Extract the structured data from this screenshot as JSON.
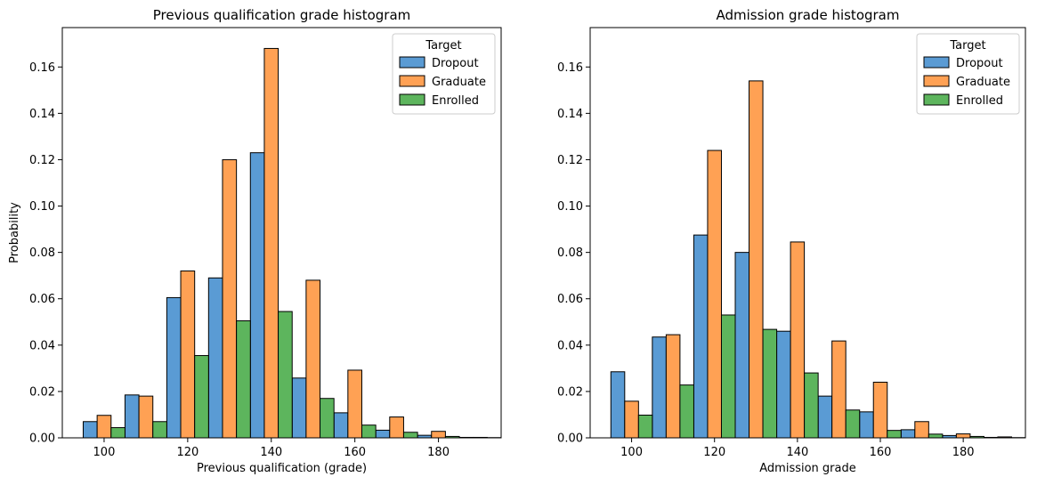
{
  "chart_data": [
    {
      "type": "bar",
      "title": "Previous qualification grade histogram",
      "xlabel": "Previous qualification (grade)",
      "ylabel": "Probability",
      "xlim": [
        90,
        195
      ],
      "ylim": [
        0,
        0.177
      ],
      "xticks": [
        100,
        120,
        140,
        160,
        180
      ],
      "yticks": [
        0.0,
        0.02,
        0.04,
        0.06,
        0.08,
        0.1,
        0.12,
        0.14,
        0.16
      ],
      "grid": false,
      "legend": {
        "title": "Target",
        "placement": "top-right"
      },
      "bin_start": 95,
      "bin_width": 10,
      "series": [
        {
          "name": "Dropout",
          "color": "#5a9bd4",
          "values": [
            0.007,
            0.0185,
            0.0605,
            0.069,
            0.123,
            0.0258,
            0.0108,
            0.0033,
            0.0011,
            0.0002
          ]
        },
        {
          "name": "Graduate",
          "color": "#ffa154",
          "values": [
            0.0097,
            0.018,
            0.072,
            0.12,
            0.168,
            0.068,
            0.0292,
            0.009,
            0.0028,
            0.0002
          ]
        },
        {
          "name": "Enrolled",
          "color": "#5db55d",
          "values": [
            0.0044,
            0.007,
            0.0355,
            0.0505,
            0.0545,
            0.017,
            0.0055,
            0.0024,
            0.0006,
            0.0001
          ]
        }
      ]
    },
    {
      "type": "bar",
      "title": "Admission grade histogram",
      "xlabel": "Admission grade",
      "ylabel": "",
      "xlim": [
        90,
        195
      ],
      "ylim": [
        0,
        0.177
      ],
      "xticks": [
        100,
        120,
        140,
        160,
        180
      ],
      "yticks": [
        0.0,
        0.02,
        0.04,
        0.06,
        0.08,
        0.1,
        0.12,
        0.14,
        0.16
      ],
      "grid": false,
      "legend": {
        "title": "Target",
        "placement": "top-right"
      },
      "bin_start": 95,
      "bin_width": 10,
      "series": [
        {
          "name": "Dropout",
          "color": "#5a9bd4",
          "values": [
            0.0285,
            0.0435,
            0.0875,
            0.08,
            0.046,
            0.018,
            0.0112,
            0.0035,
            0.001,
            0.0002
          ]
        },
        {
          "name": "Graduate",
          "color": "#ffa154",
          "values": [
            0.0158,
            0.0445,
            0.124,
            0.154,
            0.0845,
            0.0418,
            0.024,
            0.007,
            0.0017,
            0.0004
          ]
        },
        {
          "name": "Enrolled",
          "color": "#5db55d",
          "values": [
            0.0098,
            0.0228,
            0.053,
            0.0468,
            0.028,
            0.012,
            0.0032,
            0.0016,
            0.0006,
            0.0001
          ]
        }
      ]
    }
  ]
}
